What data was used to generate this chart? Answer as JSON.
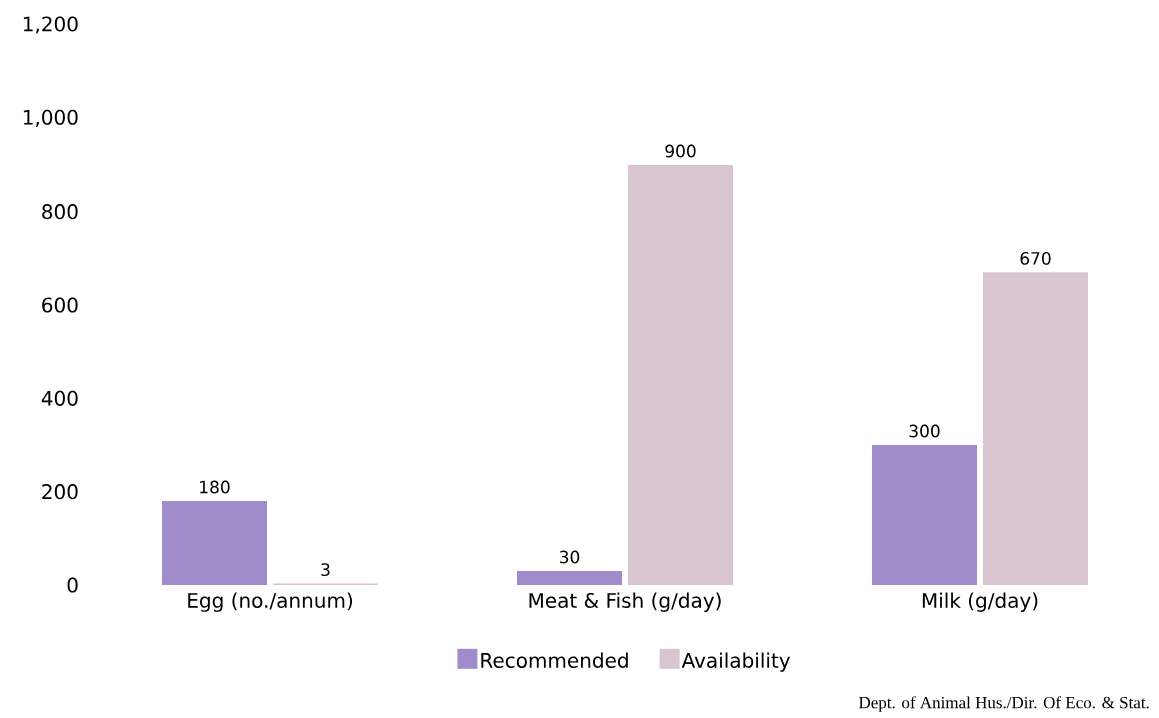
{
  "chart_data": {
    "type": "bar",
    "categories": [
      "Egg (no./annum)",
      "Meat & Fish (g/day)",
      "Milk (g/day)"
    ],
    "series": [
      {
        "name": "Recommended",
        "color": "#a08ccb",
        "values": [
          180,
          30,
          300
        ]
      },
      {
        "name": "Availability",
        "color": "#d9c4d1",
        "values": [
          3,
          900,
          670
        ]
      }
    ],
    "ylim": [
      0,
      1200
    ],
    "yticks": [
      0,
      200,
      400,
      600,
      800,
      {
        "value": 1000,
        "label": "1,000"
      },
      {
        "value": 1200,
        "label": "1,200"
      }
    ],
    "data_labels": true,
    "grid": false,
    "legend": "bottom",
    "annotations": [
      "Dept. of Animal Hus./Dir. Of Eco. & Stat."
    ]
  }
}
